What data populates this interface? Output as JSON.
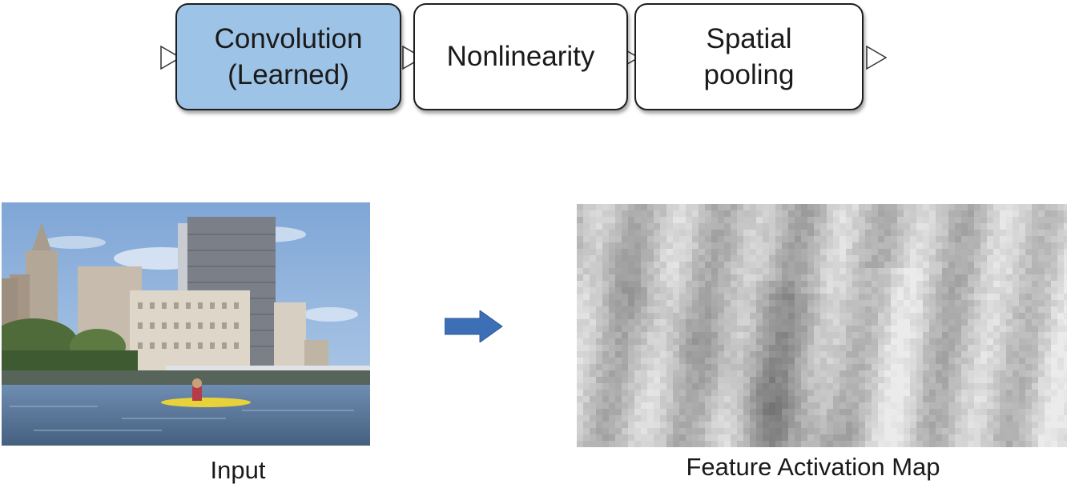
{
  "pipeline": {
    "stages": [
      {
        "label": "Convolution\n(Learned)",
        "highlighted": true,
        "fill": "#9dc3e6"
      },
      {
        "label": "Nonlinearity",
        "highlighted": false,
        "fill": "#ffffff"
      },
      {
        "label": "Spatial\npooling",
        "highlighted": false,
        "fill": "#ffffff"
      }
    ]
  },
  "panels": {
    "input_caption": "Input",
    "feature_map_caption": "Feature Activation Map"
  },
  "colors": {
    "arrow": "#3d6fb6",
    "stage_border": "#1e1e1e",
    "highlight": "#9dc3e6"
  }
}
